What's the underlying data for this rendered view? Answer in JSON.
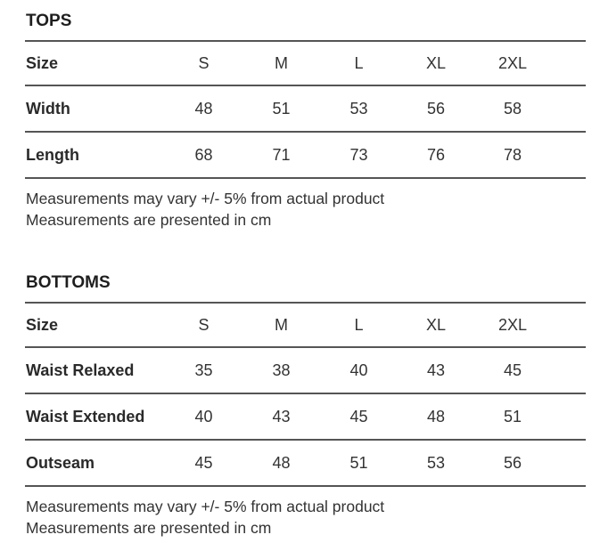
{
  "tops": {
    "title": "TOPS",
    "header": [
      "Size",
      "S",
      "M",
      "L",
      "XL",
      "2XL"
    ],
    "rows": [
      {
        "label": "Width",
        "values": [
          "48",
          "51",
          "53",
          "56",
          "58"
        ]
      },
      {
        "label": "Length",
        "values": [
          "68",
          "71",
          "73",
          "76",
          "78"
        ]
      }
    ],
    "notes": [
      "Measurements may vary +/- 5% from actual product",
      "Measurements are presented in cm"
    ]
  },
  "bottoms": {
    "title": "BOTTOMS",
    "header": [
      "Size",
      "S",
      "M",
      "L",
      "XL",
      "2XL"
    ],
    "rows": [
      {
        "label": "Waist Relaxed",
        "values": [
          "35",
          "38",
          "40",
          "43",
          "45"
        ]
      },
      {
        "label": "Waist Extended",
        "values": [
          "40",
          "43",
          "45",
          "48",
          "51"
        ]
      },
      {
        "label": "Outseam",
        "values": [
          "45",
          "48",
          "51",
          "53",
          "56"
        ]
      }
    ],
    "notes": [
      "Measurements may vary +/- 5% from actual product",
      "Measurements are presented in cm"
    ]
  }
}
